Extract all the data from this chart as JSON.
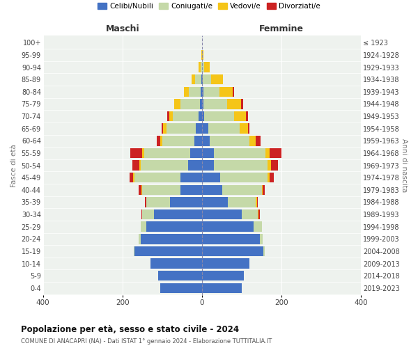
{
  "age_groups": [
    "0-4",
    "5-9",
    "10-14",
    "15-19",
    "20-24",
    "25-29",
    "30-34",
    "35-39",
    "40-44",
    "45-49",
    "50-54",
    "55-59",
    "60-64",
    "65-69",
    "70-74",
    "75-79",
    "80-84",
    "85-89",
    "90-94",
    "95-99",
    "100+"
  ],
  "birth_years": [
    "2019-2023",
    "2014-2018",
    "2009-2013",
    "2004-2008",
    "1999-2003",
    "1994-1998",
    "1989-1993",
    "1984-1988",
    "1979-1983",
    "1974-1978",
    "1969-1973",
    "1964-1968",
    "1959-1963",
    "1954-1958",
    "1949-1953",
    "1944-1948",
    "1939-1943",
    "1934-1938",
    "1929-1933",
    "1924-1928",
    "≤ 1923"
  ],
  "male": {
    "celibi": [
      105,
      110,
      130,
      170,
      155,
      140,
      120,
      80,
      55,
      55,
      35,
      30,
      20,
      15,
      8,
      5,
      3,
      2,
      0,
      0,
      0
    ],
    "coniugati": [
      0,
      0,
      0,
      2,
      5,
      15,
      30,
      60,
      95,
      115,
      120,
      115,
      80,
      75,
      65,
      50,
      30,
      15,
      3,
      0,
      0
    ],
    "vedovi": [
      0,
      0,
      0,
      0,
      0,
      0,
      0,
      0,
      2,
      3,
      3,
      5,
      5,
      8,
      10,
      15,
      12,
      10,
      5,
      2,
      0
    ],
    "divorziati": [
      0,
      0,
      0,
      0,
      0,
      0,
      3,
      3,
      8,
      10,
      18,
      30,
      8,
      3,
      5,
      0,
      0,
      0,
      0,
      0,
      0
    ]
  },
  "female": {
    "nubili": [
      100,
      105,
      120,
      155,
      145,
      130,
      100,
      65,
      50,
      45,
      30,
      30,
      20,
      15,
      5,
      3,
      3,
      2,
      0,
      0,
      0
    ],
    "coniugate": [
      0,
      0,
      0,
      2,
      8,
      20,
      40,
      70,
      100,
      120,
      135,
      130,
      100,
      80,
      75,
      60,
      40,
      20,
      5,
      0,
      0
    ],
    "vedove": [
      0,
      0,
      0,
      0,
      0,
      0,
      2,
      3,
      3,
      5,
      8,
      10,
      15,
      20,
      30,
      35,
      35,
      30,
      15,
      3,
      0
    ],
    "divorziate": [
      0,
      0,
      0,
      0,
      0,
      0,
      3,
      3,
      5,
      10,
      18,
      30,
      12,
      5,
      5,
      5,
      3,
      0,
      0,
      0,
      0
    ]
  },
  "colors": {
    "celibi": "#4472C4",
    "coniugati": "#C5D9A8",
    "vedovi": "#F5C518",
    "divorziati": "#CC2222"
  },
  "title": "Popolazione per età, sesso e stato civile - 2024",
  "subtitle": "COMUNE DI ANACAPRI (NA) - Dati ISTAT 1° gennaio 2024 - Elaborazione TUTTITALIA.IT",
  "xlabel_left": "Maschi",
  "xlabel_right": "Femmine",
  "ylabel": "Fasce di età",
  "ylabel_right": "Anni di nascita",
  "xlim": 400,
  "legend_labels": [
    "Celibi/Nubili",
    "Coniugati/e",
    "Vedovi/e",
    "Divorziati/e"
  ],
  "bg_color": "#ffffff",
  "plot_bg": "#eef2ee"
}
